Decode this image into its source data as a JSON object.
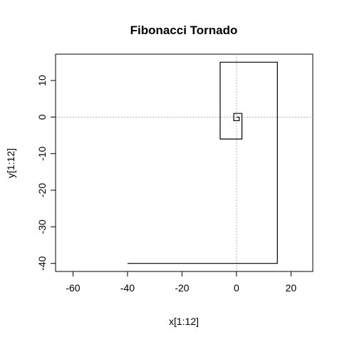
{
  "chart_data": {
    "type": "line",
    "title": "Fibonacci Tornado",
    "xlabel": "x[1:12]",
    "ylabel": "y[1:12]",
    "xlim": [
      -66.4,
      28
    ],
    "ylim": [
      -42.2,
      17.2
    ],
    "xticks": [
      -60,
      -40,
      -20,
      0,
      20
    ],
    "yticks": [
      -40,
      -30,
      -20,
      -10,
      0,
      10
    ],
    "xtick_labels": [
      "-60",
      "-40",
      "-20",
      "0",
      "20"
    ],
    "ytick_labels": [
      "-40",
      "-30",
      "-20",
      "-10",
      "0",
      "10"
    ],
    "reference_lines": {
      "x": 0,
      "y": 0,
      "style": "dotted",
      "color": "#b4b4b4"
    },
    "series": [
      {
        "x": [
          0,
          1,
          1,
          -1,
          -1,
          2,
          2,
          -6,
          -6,
          15,
          15,
          -40
        ],
        "y": [
          0,
          0,
          -1,
          -1,
          1,
          1,
          -6,
          -6,
          15,
          15,
          -40,
          -40
        ],
        "color": "#000000"
      }
    ],
    "grid": false
  }
}
